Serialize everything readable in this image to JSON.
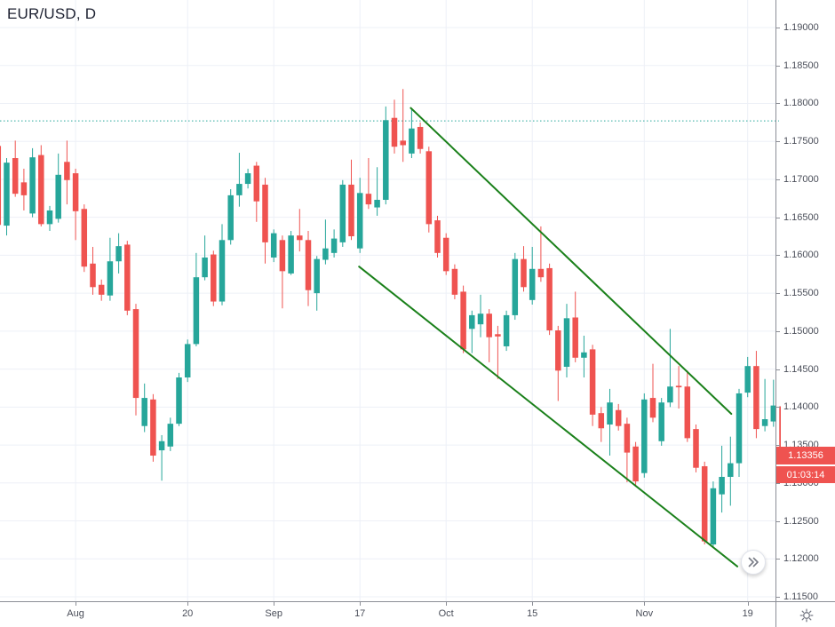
{
  "header": {
    "symbol_title": "EUR/USD, D"
  },
  "price_axis": {
    "last_price_label": "1.13356",
    "countdown_label": "01:03:14"
  },
  "controls": {
    "scroll_to_realtime_icon": "double-chevron-right",
    "axis_settings_icon": "gear"
  },
  "colors": {
    "background": "#ffffff",
    "grid": "#edf0f7",
    "axis_line": "#8c8e96",
    "axis_text": "#4a4e59",
    "title_text": "#1c2030",
    "up_candle": "#26a69a",
    "down_candle": "#ef5350",
    "trendline": "#1a801a",
    "level_line": "#26a69a",
    "price_tag_bg": "#ef5350",
    "price_tag_text": "#ffffff",
    "button_icon": "#787b86"
  },
  "chart_data": {
    "type": "candlestick",
    "symbol": "EUR/USD",
    "timeframe": "D",
    "y_axis": {
      "min": 1.115,
      "max": 1.19,
      "tick_step": 0.005
    },
    "y_tick_labels": [
      "1.19000",
      "1.18500",
      "1.18000",
      "1.17500",
      "1.17000",
      "1.16500",
      "1.16000",
      "1.15500",
      "1.15000",
      "1.14500",
      "1.14000",
      "1.13500",
      "1.13000",
      "1.12500",
      "1.12000",
      "1.11500"
    ],
    "x_ticks": [
      {
        "label": "Aug",
        "candle_index": 8
      },
      {
        "label": "20",
        "candle_index": 21
      },
      {
        "label": "Sep",
        "candle_index": 31
      },
      {
        "label": "17",
        "candle_index": 41
      },
      {
        "label": "Oct",
        "candle_index": 51
      },
      {
        "label": "15",
        "candle_index": 61
      },
      {
        "label": "Nov",
        "candle_index": 74
      },
      {
        "label": "19",
        "candle_index": 86
      }
    ],
    "level_line": {
      "price": 1.1777,
      "style": "dotted"
    },
    "trendlines": [
      {
        "from_index": 46.9,
        "from_price": 1.1794,
        "to_index": 84.1,
        "to_price": 1.1391
      },
      {
        "from_index": 40.9,
        "from_price": 1.1585,
        "to_index": 84.8,
        "to_price": 1.119
      }
    ],
    "last_price": 1.13356,
    "candles_format": [
      "open",
      "high",
      "low",
      "close"
    ],
    "first_candle_chart_index": -1,
    "candles": [
      [
        1.1744,
        1.1746,
        1.1636,
        1.164
      ],
      [
        1.1639,
        1.1728,
        1.1626,
        1.1722
      ],
      [
        1.1728,
        1.1751,
        1.1677,
        1.1681
      ],
      [
        1.1696,
        1.1714,
        1.1659,
        1.1679
      ],
      [
        1.1655,
        1.1741,
        1.165,
        1.1729
      ],
      [
        1.1732,
        1.1745,
        1.1638,
        1.1641
      ],
      [
        1.1641,
        1.1665,
        1.1632,
        1.1659
      ],
      [
        1.1648,
        1.1734,
        1.1643,
        1.1706
      ],
      [
        1.1723,
        1.1751,
        1.1667,
        1.1699
      ],
      [
        1.1708,
        1.1714,
        1.162,
        1.1658
      ],
      [
        1.1661,
        1.1667,
        1.1578,
        1.1585
      ],
      [
        1.1589,
        1.1611,
        1.1548,
        1.1558
      ],
      [
        1.1561,
        1.1568,
        1.154,
        1.1548
      ],
      [
        1.1547,
        1.1623,
        1.154,
        1.1592
      ],
      [
        1.1592,
        1.1629,
        1.1576,
        1.1612
      ],
      [
        1.1614,
        1.1619,
        1.1521,
        1.1527
      ],
      [
        1.1529,
        1.1536,
        1.1389,
        1.1412
      ],
      [
        1.1375,
        1.1431,
        1.1367,
        1.1412
      ],
      [
        1.141,
        1.1417,
        1.1328,
        1.1336
      ],
      [
        1.1343,
        1.1363,
        1.1303,
        1.1355
      ],
      [
        1.1348,
        1.1386,
        1.1342,
        1.1378
      ],
      [
        1.1378,
        1.1445,
        1.1375,
        1.1439
      ],
      [
        1.1439,
        1.1489,
        1.1433,
        1.1483
      ],
      [
        1.1483,
        1.1603,
        1.148,
        1.1571
      ],
      [
        1.1571,
        1.1626,
        1.1567,
        1.1597
      ],
      [
        1.1601,
        1.1606,
        1.1533,
        1.1539
      ],
      [
        1.1539,
        1.1641,
        1.1534,
        1.162
      ],
      [
        1.162,
        1.1687,
        1.1614,
        1.1679
      ],
      [
        1.1679,
        1.1735,
        1.1664,
        1.1694
      ],
      [
        1.1694,
        1.1714,
        1.1688,
        1.1708
      ],
      [
        1.1718,
        1.1723,
        1.1644,
        1.1671
      ],
      [
        1.1693,
        1.1702,
        1.1589,
        1.1617
      ],
      [
        1.1597,
        1.1634,
        1.1591,
        1.1629
      ],
      [
        1.162,
        1.1626,
        1.153,
        1.1579
      ],
      [
        1.1576,
        1.1632,
        1.1574,
        1.1626
      ],
      [
        1.1626,
        1.1661,
        1.1605,
        1.162
      ],
      [
        1.162,
        1.1632,
        1.1533,
        1.1554
      ],
      [
        1.155,
        1.1599,
        1.1527,
        1.1595
      ],
      [
        1.1594,
        1.1647,
        1.1588,
        1.1609
      ],
      [
        1.1603,
        1.1634,
        1.1597,
        1.1622
      ],
      [
        1.1617,
        1.1699,
        1.1611,
        1.1693
      ],
      [
        1.1693,
        1.1726,
        1.162,
        1.1625
      ],
      [
        1.1609,
        1.1702,
        1.1603,
        1.1682
      ],
      [
        1.1681,
        1.1728,
        1.1661,
        1.1667
      ],
      [
        1.1663,
        1.1716,
        1.1652,
        1.1673
      ],
      [
        1.1673,
        1.1796,
        1.1667,
        1.1778
      ],
      [
        1.1781,
        1.1805,
        1.1734,
        1.1743
      ],
      [
        1.1751,
        1.1819,
        1.1723,
        1.1745
      ],
      [
        1.1734,
        1.1793,
        1.1728,
        1.1767
      ],
      [
        1.1769,
        1.1775,
        1.1734,
        1.174
      ],
      [
        1.1737,
        1.1743,
        1.163,
        1.1641
      ],
      [
        1.1646,
        1.1652,
        1.1597,
        1.1603
      ],
      [
        1.1623,
        1.1629,
        1.1574,
        1.1579
      ],
      [
        1.1582,
        1.1588,
        1.1542,
        1.1548
      ],
      [
        1.1552,
        1.156,
        1.1471,
        1.1476
      ],
      [
        1.1503,
        1.1527,
        1.1471,
        1.1521
      ],
      [
        1.1509,
        1.1548,
        1.1492,
        1.1523
      ],
      [
        1.1523,
        1.1529,
        1.1459,
        1.1492
      ],
      [
        1.1496,
        1.1507,
        1.1437,
        1.1493
      ],
      [
        1.148,
        1.1527,
        1.1474,
        1.1521
      ],
      [
        1.1521,
        1.1603,
        1.1515,
        1.1595
      ],
      [
        1.1595,
        1.1612,
        1.1552,
        1.1558
      ],
      [
        1.1541,
        1.1611,
        1.1535,
        1.1582
      ],
      [
        1.1582,
        1.1638,
        1.1565,
        1.1571
      ],
      [
        1.1583,
        1.1589,
        1.1495,
        1.1501
      ],
      [
        1.1501,
        1.1507,
        1.1408,
        1.1448
      ],
      [
        1.1453,
        1.1536,
        1.1439,
        1.1517
      ],
      [
        1.1518,
        1.1552,
        1.1459,
        1.1465
      ],
      [
        1.1465,
        1.1494,
        1.1439,
        1.1472
      ],
      [
        1.1476,
        1.1482,
        1.1375,
        1.139
      ],
      [
        1.1392,
        1.14,
        1.1354,
        1.1372
      ],
      [
        1.1377,
        1.1424,
        1.1336,
        1.1406
      ],
      [
        1.1396,
        1.1404,
        1.1369,
        1.1375
      ],
      [
        1.1378,
        1.1386,
        1.1301,
        1.134
      ],
      [
        1.1348,
        1.1354,
        1.1295,
        1.1302
      ],
      [
        1.1313,
        1.1418,
        1.1307,
        1.141
      ],
      [
        1.1412,
        1.1457,
        1.138,
        1.1386
      ],
      [
        1.1355,
        1.1412,
        1.1349,
        1.1406
      ],
      [
        1.1406,
        1.1503,
        1.14,
        1.1427
      ],
      [
        1.1428,
        1.1454,
        1.1398,
        1.1426
      ],
      [
        1.1427,
        1.1448,
        1.1354,
        1.1359
      ],
      [
        1.1371,
        1.1377,
        1.1314,
        1.132
      ],
      [
        1.1322,
        1.1328,
        1.1219,
        1.1223
      ],
      [
        1.1219,
        1.1302,
        1.1215,
        1.1293
      ],
      [
        1.1285,
        1.1349,
        1.1261,
        1.1308
      ],
      [
        1.1308,
        1.1361,
        1.127,
        1.1326
      ],
      [
        1.1326,
        1.1424,
        1.1308,
        1.1418
      ],
      [
        1.1419,
        1.1466,
        1.1413,
        1.1454
      ],
      [
        1.1454,
        1.1474,
        1.1359,
        1.1371
      ],
      [
        1.1375,
        1.1437,
        1.1368,
        1.1384
      ],
      [
        1.1381,
        1.1436,
        1.1374,
        1.1402
      ],
      [
        1.1401,
        1.1404,
        1.1334,
        1.13356
      ]
    ]
  }
}
